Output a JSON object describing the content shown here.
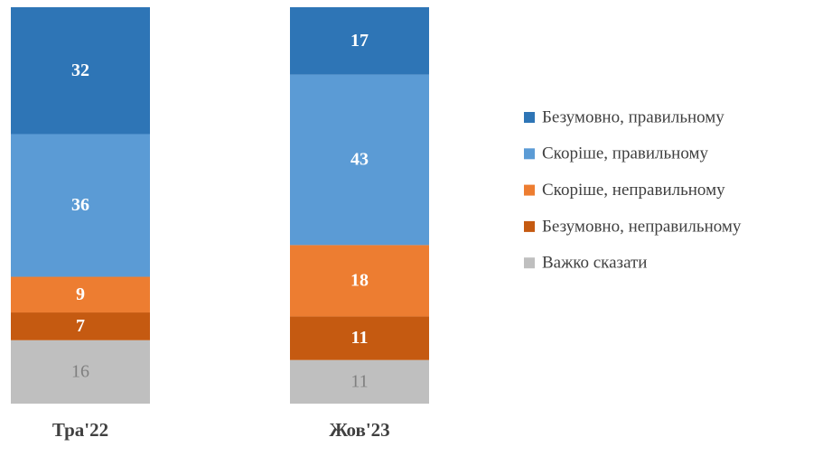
{
  "chart_data": {
    "type": "stacked_bar",
    "categories": [
      "Тра'22",
      "Жов'23"
    ],
    "series": [
      {
        "name": "Безумовно, правильному",
        "color": "#2e75b6",
        "label_color": "#ffffff",
        "values": [
          32,
          17
        ]
      },
      {
        "name": "Скоріше, правильному",
        "color": "#5b9bd5",
        "label_color": "#ffffff",
        "values": [
          36,
          43
        ]
      },
      {
        "name": "Скоріше, неправильному",
        "color": "#ed7d31",
        "label_color": "#ffffff",
        "values": [
          9,
          18
        ]
      },
      {
        "name": "Безумовно, неправильному",
        "color": "#c55a11",
        "label_color": "#ffffff",
        "values": [
          7,
          11
        ]
      },
      {
        "name": "Важко сказати",
        "color": "#bfbfbf",
        "label_color": "#7f7f7f",
        "values": [
          16,
          11
        ]
      }
    ],
    "legend": "right"
  }
}
